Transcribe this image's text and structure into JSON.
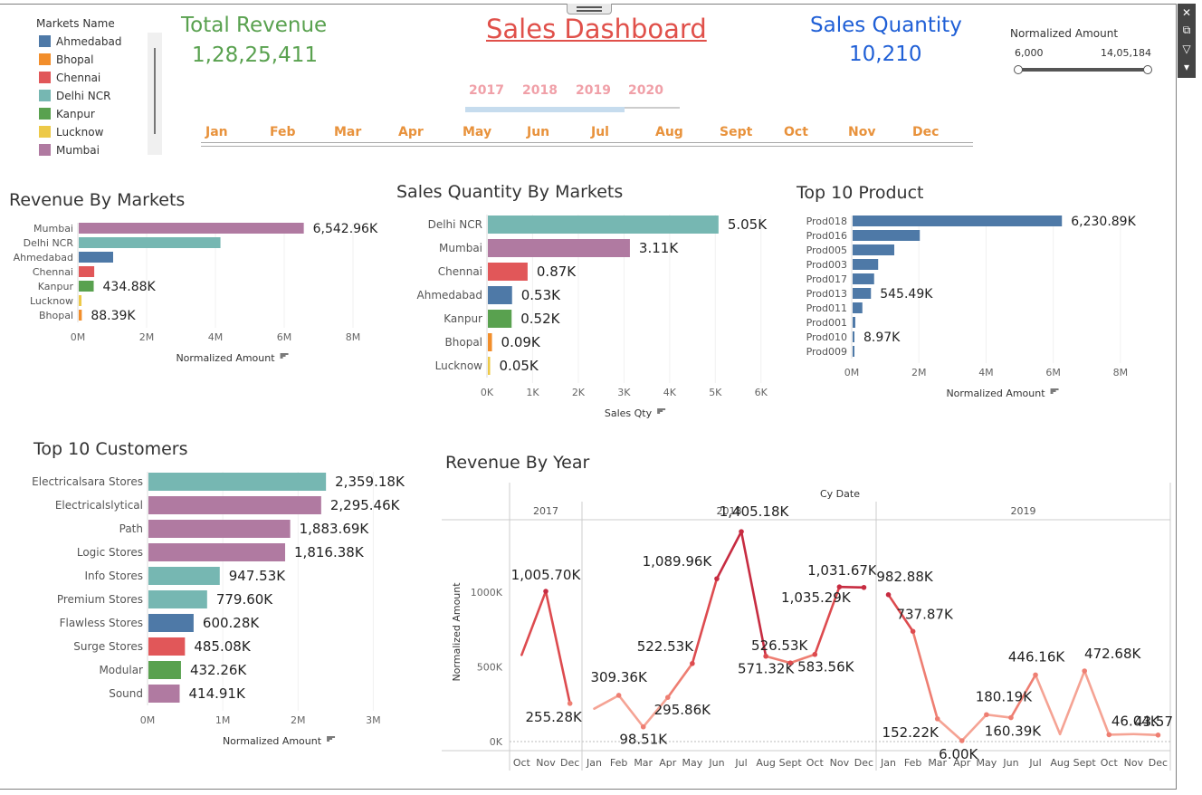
{
  "header": {
    "title": "Sales Dashboard",
    "total_revenue_label": "Total Revenue",
    "total_revenue_value": "1,28,25,411",
    "sales_quantity_label": "Sales Quantity",
    "sales_quantity_value": "10,210"
  },
  "colors": {
    "Ahmedabad": "#4e79a7",
    "Bhopal": "#f28e2b",
    "Chennai": "#e15759",
    "Delhi NCR": "#76b7b2",
    "Kanpur": "#59a14f",
    "Lucknow": "#edc948",
    "Mumbai": "#b07aa1",
    "product": "#4e79a7",
    "revenue_green": "#59a14f",
    "quantity_blue": "#1f5fd6",
    "title_red": "#e0504a"
  },
  "legend": {
    "title": "Markets Name",
    "items": [
      "Ahmedabad",
      "Bhopal",
      "Chennai",
      "Delhi NCR",
      "Kanpur",
      "Lucknow",
      "Mumbai"
    ]
  },
  "filters": {
    "years": [
      "2017",
      "2018",
      "2019",
      "2020"
    ],
    "months": [
      "Jan",
      "Feb",
      "Mar",
      "Apr",
      "May",
      "Jun",
      "Jul",
      "Aug",
      "Sept",
      "Oct",
      "Nov",
      "Dec"
    ],
    "normalized_amount": {
      "label": "Normalized Amount",
      "min": "6,000",
      "max": "14,05,184"
    }
  },
  "toolbar": {
    "close": "✕",
    "popout": "⧉",
    "filter": "▽",
    "more": "▾"
  },
  "sheets": {
    "revenue_by_markets": "Revenue By Markets",
    "sales_qty_by_markets": "Sales Quantity By Markets",
    "top10_product": "Top 10 Product",
    "top10_customers": "Top 10 Customers",
    "revenue_by_year": "Revenue By Year"
  },
  "chart_data": [
    {
      "id": "revenue_by_markets",
      "type": "bar",
      "orientation": "horizontal",
      "title": "Revenue By Markets",
      "xlabel": "Normalized Amount",
      "xticks": [
        "0M",
        "2M",
        "4M",
        "6M",
        "8M"
      ],
      "xlim": [
        0,
        9000
      ],
      "categories": [
        "Mumbai",
        "Delhi NCR",
        "Ahmedabad",
        "Chennai",
        "Kanpur",
        "Lucknow",
        "Bhopal"
      ],
      "values": [
        6542.96,
        4120,
        1000,
        450,
        434.88,
        80,
        88.39
      ],
      "labels": [
        "6,542.96K",
        "",
        "",
        "",
        "434.88K",
        "",
        "88.39K"
      ],
      "colors": [
        "#b07aa1",
        "#76b7b2",
        "#4e79a7",
        "#e15759",
        "#59a14f",
        "#edc948",
        "#f28e2b"
      ]
    },
    {
      "id": "sales_qty_by_markets",
      "type": "bar",
      "orientation": "horizontal",
      "title": "Sales Quantity By Markets",
      "xlabel": "Sales Qty",
      "xticks": [
        "0K",
        "1K",
        "2K",
        "3K",
        "4K",
        "5K",
        "6K"
      ],
      "xlim": [
        0,
        6500
      ],
      "categories": [
        "Delhi NCR",
        "Mumbai",
        "Chennai",
        "Ahmedabad",
        "Kanpur",
        "Bhopal",
        "Lucknow"
      ],
      "values": [
        5050,
        3110,
        870,
        530,
        520,
        90,
        50
      ],
      "labels": [
        "5.05K",
        "3.11K",
        "0.87K",
        "0.53K",
        "0.52K",
        "0.09K",
        "0.05K"
      ],
      "colors": [
        "#76b7b2",
        "#b07aa1",
        "#e15759",
        "#4e79a7",
        "#59a14f",
        "#f28e2b",
        "#edc948"
      ]
    },
    {
      "id": "top10_product",
      "type": "bar",
      "orientation": "horizontal",
      "title": "Top 10 Product",
      "xlabel": "Normalized Amount",
      "xticks": [
        "0M",
        "2M",
        "4M",
        "6M",
        "8M"
      ],
      "xlim": [
        0,
        9000
      ],
      "categories": [
        "Prod018",
        "Prod016",
        "Prod005",
        "Prod003",
        "Prod017",
        "Prod013",
        "Prod011",
        "Prod001",
        "Prod010",
        "Prod009"
      ],
      "values": [
        6230.89,
        2000,
        1240,
        760,
        640,
        545.49,
        290,
        80,
        8.97,
        5
      ],
      "labels": [
        "6,230.89K",
        "",
        "",
        "",
        "",
        "545.49K",
        "",
        "",
        "8.97K",
        ""
      ],
      "colors": [
        "#4e79a7"
      ]
    },
    {
      "id": "top10_customers",
      "type": "bar",
      "orientation": "horizontal",
      "title": "Top 10 Customers",
      "xlabel": "Normalized Amount",
      "xticks": [
        "0M",
        "1M",
        "2M",
        "3M"
      ],
      "xlim": [
        0,
        3500
      ],
      "categories": [
        "Electricalsara Stores",
        "Electricalslytical",
        "Path",
        "Logic Stores",
        "Info Stores",
        "Premium Stores",
        "Flawless Stores",
        "Surge Stores",
        "Modular",
        "Sound"
      ],
      "values": [
        2359.18,
        2295.46,
        1883.69,
        1816.38,
        947.53,
        779.6,
        600.28,
        485.08,
        432.26,
        414.91
      ],
      "labels": [
        "2,359.18K",
        "2,295.46K",
        "1,883.69K",
        "1,816.38K",
        "947.53K",
        "779.60K",
        "600.28K",
        "485.08K",
        "432.26K",
        "414.91K"
      ],
      "colors": [
        "#76b7b2",
        "#b07aa1",
        "#b07aa1",
        "#b07aa1",
        "#76b7b2",
        "#76b7b2",
        "#4e79a7",
        "#e15759",
        "#59a14f",
        "#b07aa1"
      ]
    },
    {
      "id": "revenue_by_year",
      "type": "line",
      "title": "Revenue By Year",
      "column_header": "Cy Date",
      "ylabel": "Normalized Amount",
      "yticks": [
        "0K",
        "500K",
        "1000K"
      ],
      "ylim": [
        0,
        1500
      ],
      "panels": [
        {
          "year": "2017",
          "months": [
            "Oct",
            "Nov",
            "Dec"
          ],
          "values": [
            580,
            1005.7,
            255.28
          ],
          "labels": [
            "",
            "1,005.70K",
            "255.28K"
          ]
        },
        {
          "year": "2018",
          "months": [
            "Jan",
            "Feb",
            "Mar",
            "Apr",
            "May",
            "Jun",
            "Jul",
            "Aug",
            "Sept",
            "Oct",
            "Nov",
            "Dec"
          ],
          "values": [
            220,
            309.36,
            98.51,
            295.86,
            522.53,
            1089.96,
            1405.18,
            571.32,
            526.53,
            583.56,
            1035.29,
            1031.67
          ],
          "labels": [
            "",
            "309.36K",
            "98.51K",
            "295.86K",
            "522.53K",
            "1,089.96K",
            "1,405.18K",
            "571.32K",
            "526.53K",
            "583.56K",
            "1,035.29K",
            "1,031.67K"
          ]
        },
        {
          "year": "2019",
          "months": [
            "Jan",
            "Feb",
            "Mar",
            "Apr",
            "May",
            "Jun",
            "Jul",
            "Aug",
            "Sept",
            "Oct",
            "Nov",
            "Dec"
          ],
          "values": [
            982.88,
            737.87,
            152.22,
            6.0,
            180.19,
            160.39,
            446.16,
            50,
            472.68,
            46.04,
            50,
            43.57
          ],
          "labels": [
            "982.88K",
            "737.87K",
            "152.22K",
            "6.00K",
            "180.19K",
            "160.39K",
            "446.16K",
            "",
            "472.68K",
            "46.04K",
            "",
            "43.57K"
          ]
        }
      ]
    }
  ]
}
